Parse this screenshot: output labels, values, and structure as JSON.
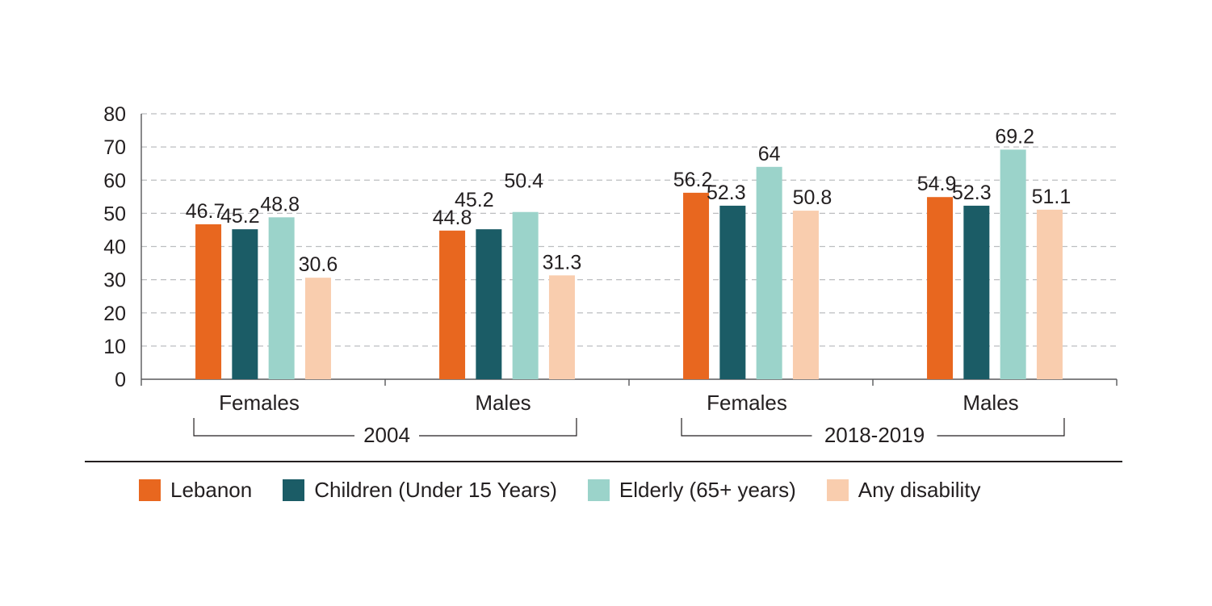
{
  "chart_data": {
    "type": "bar",
    "title": "",
    "xlabel": "",
    "ylabel": "",
    "ylim": [
      0,
      80
    ],
    "yticks": [
      0,
      10,
      20,
      30,
      40,
      50,
      60,
      70,
      80
    ],
    "grid": true,
    "legend_position": "bottom",
    "categories": [
      "Females",
      "Males",
      "Females",
      "Males"
    ],
    "groups": [
      {
        "label": "2004",
        "categories": [
          "Females",
          "Males"
        ]
      },
      {
        "label": "2018-2019",
        "categories": [
          "Females",
          "Males"
        ]
      }
    ],
    "series": [
      {
        "name": "Lebanon",
        "color": "#e8671f",
        "values": [
          46.7,
          44.8,
          56.2,
          54.9
        ],
        "labels": [
          "46.7",
          "44.8",
          "56.2",
          "54.9"
        ]
      },
      {
        "name": "Children (Under 15 Years)",
        "color": "#1b5c66",
        "values": [
          45.2,
          45.2,
          52.3,
          52.3
        ],
        "labels": [
          "45.2",
          "45.2",
          "52.3",
          "52.3"
        ]
      },
      {
        "name": "Elderly (65+ years)",
        "color": "#9bd3ca",
        "values": [
          48.8,
          50.4,
          64,
          69.2
        ],
        "labels": [
          "48.8",
          "50.4",
          "64",
          "69.2"
        ]
      },
      {
        "name": "Any disability",
        "color": "#f9cdae",
        "values": [
          30.6,
          31.3,
          50.8,
          51.1
        ],
        "labels": [
          "30.6",
          "31.3",
          "50.8",
          "51.1"
        ]
      }
    ]
  }
}
